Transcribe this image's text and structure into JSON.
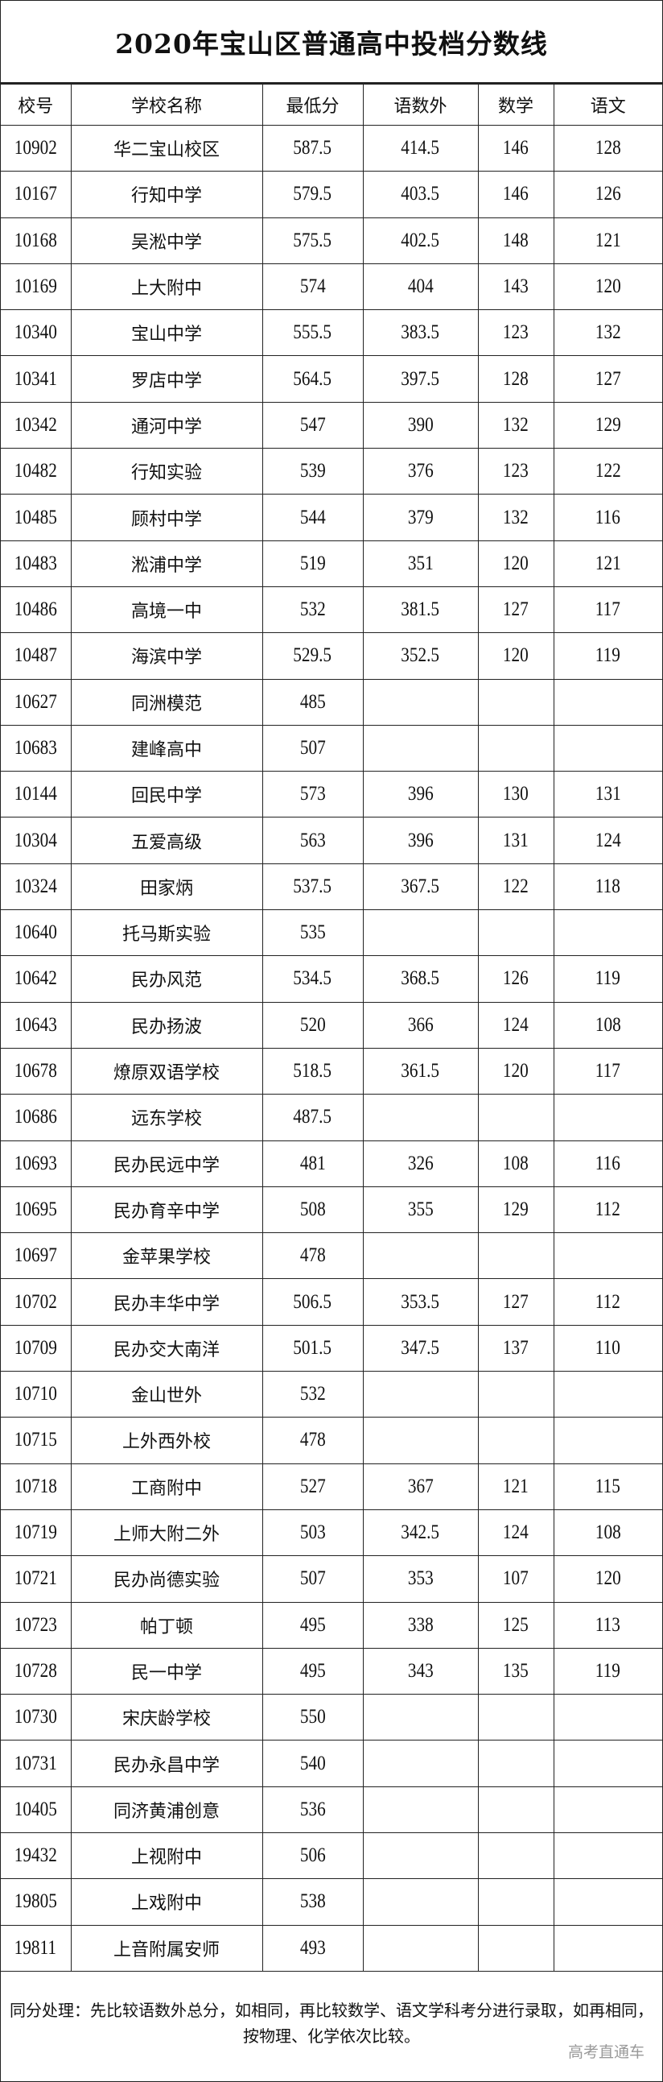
{
  "title": "2020年宝山区普通高中投档分数线",
  "columns": [
    "校号",
    "学校名称",
    "最低分",
    "语数外",
    "数学",
    "语文"
  ],
  "rows": [
    [
      "10902",
      "华二宝山校区",
      "587.5",
      "414.5",
      "146",
      "128"
    ],
    [
      "10167",
      "行知中学",
      "579.5",
      "403.5",
      "146",
      "126"
    ],
    [
      "10168",
      "吴淞中学",
      "575.5",
      "402.5",
      "148",
      "121"
    ],
    [
      "10169",
      "上大附中",
      "574",
      "404",
      "143",
      "120"
    ],
    [
      "10340",
      "宝山中学",
      "555.5",
      "383.5",
      "123",
      "132"
    ],
    [
      "10341",
      "罗店中学",
      "564.5",
      "397.5",
      "128",
      "127"
    ],
    [
      "10342",
      "通河中学",
      "547",
      "390",
      "132",
      "129"
    ],
    [
      "10482",
      "行知实验",
      "539",
      "376",
      "123",
      "122"
    ],
    [
      "10485",
      "顾村中学",
      "544",
      "379",
      "132",
      "116"
    ],
    [
      "10483",
      "淞浦中学",
      "519",
      "351",
      "120",
      "121"
    ],
    [
      "10486",
      "高境一中",
      "532",
      "381.5",
      "127",
      "117"
    ],
    [
      "10487",
      "海滨中学",
      "529.5",
      "352.5",
      "120",
      "119"
    ],
    [
      "10627",
      "同洲模范",
      "485",
      "",
      "",
      ""
    ],
    [
      "10683",
      "建峰高中",
      "507",
      "",
      "",
      ""
    ],
    [
      "10144",
      "回民中学",
      "573",
      "396",
      "130",
      "131"
    ],
    [
      "10304",
      "五爱高级",
      "563",
      "396",
      "131",
      "124"
    ],
    [
      "10324",
      "田家炳",
      "537.5",
      "367.5",
      "122",
      "118"
    ],
    [
      "10640",
      "托马斯实验",
      "535",
      "",
      "",
      ""
    ],
    [
      "10642",
      "民办风范",
      "534.5",
      "368.5",
      "126",
      "119"
    ],
    [
      "10643",
      "民办扬波",
      "520",
      "366",
      "124",
      "108"
    ],
    [
      "10678",
      "燎原双语学校",
      "518.5",
      "361.5",
      "120",
      "117"
    ],
    [
      "10686",
      "远东学校",
      "487.5",
      "",
      "",
      ""
    ],
    [
      "10693",
      "民办民远中学",
      "481",
      "326",
      "108",
      "116"
    ],
    [
      "10695",
      "民办育辛中学",
      "508",
      "355",
      "129",
      "112"
    ],
    [
      "10697",
      "金苹果学校",
      "478",
      "",
      "",
      ""
    ],
    [
      "10702",
      "民办丰华中学",
      "506.5",
      "353.5",
      "127",
      "112"
    ],
    [
      "10709",
      "民办交大南洋",
      "501.5",
      "347.5",
      "137",
      "110"
    ],
    [
      "10710",
      "金山世外",
      "532",
      "",
      "",
      ""
    ],
    [
      "10715",
      "上外西外校",
      "478",
      "",
      "",
      ""
    ],
    [
      "10718",
      "工商附中",
      "527",
      "367",
      "121",
      "115"
    ],
    [
      "10719",
      "上师大附二外",
      "503",
      "342.5",
      "124",
      "108"
    ],
    [
      "10721",
      "民办尚德实验",
      "507",
      "353",
      "107",
      "120"
    ],
    [
      "10723",
      "帕丁顿",
      "495",
      "338",
      "125",
      "113"
    ],
    [
      "10728",
      "民一中学",
      "495",
      "343",
      "135",
      "119"
    ],
    [
      "10730",
      "宋庆龄学校",
      "550",
      "",
      "",
      ""
    ],
    [
      "10731",
      "民办永昌中学",
      "540",
      "",
      "",
      ""
    ],
    [
      "10405",
      "同济黄浦创意",
      "536",
      "",
      "",
      ""
    ],
    [
      "19432",
      "上视附中",
      "506",
      "",
      "",
      ""
    ],
    [
      "19805",
      "上戏附中",
      "538",
      "",
      "",
      ""
    ],
    [
      "19811",
      "上音附属安师",
      "493",
      "",
      "",
      ""
    ]
  ],
  "footer": {
    "note": "同分处理：先比较语数外总分，如相同，再比较数学、语文学科考分进行录取，如再相同，按物理、化学依次比较。",
    "watermark": "高考直通车"
  }
}
